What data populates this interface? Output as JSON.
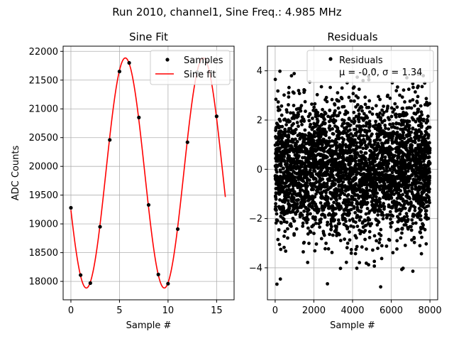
{
  "figure": {
    "title": "Run 2010, channel1, Sine Freq.: 4.985 MHz"
  },
  "colors": {
    "samples": "#000000",
    "fit": "#ff0000",
    "grid": "#b0b0b0",
    "residuals": "#000000"
  },
  "chart_data": [
    {
      "type": "line",
      "title": "Sine Fit",
      "xlabel": "Sample #",
      "ylabel": "ADC Counts",
      "xlim": [
        -0.8,
        16.8
      ],
      "ylim": [
        17680,
        22090
      ],
      "xticks": [
        0,
        5,
        10,
        15
      ],
      "yticks": [
        18000,
        18500,
        19000,
        19500,
        20000,
        20500,
        21000,
        21500,
        22000
      ],
      "grid": true,
      "legend_position": "top-right",
      "series": [
        {
          "name": "Samples",
          "style": "markers",
          "x": [
            0,
            1,
            2,
            3,
            4,
            5,
            6,
            7,
            8,
            9,
            10,
            11,
            12,
            13,
            14,
            15
          ],
          "y": [
            19280,
            18110,
            17970,
            18950,
            20460,
            21650,
            21800,
            20850,
            19330,
            18120,
            17960,
            18910,
            20420,
            21640,
            21820,
            20870
          ]
        },
        {
          "name": "Sine fit",
          "style": "line",
          "model": {
            "offset": 19885,
            "amplitude": 2000,
            "period_samples": 8.025,
            "peak_at_sample": 5.6,
            "x_range": [
              0,
              15.9
            ]
          }
        }
      ]
    },
    {
      "type": "scatter",
      "title": "Residuals",
      "xlabel": "Sample #",
      "ylabel": "",
      "xlim": [
        -400,
        8400
      ],
      "ylim": [
        -5.3,
        5.0
      ],
      "xticks": [
        0,
        2000,
        4000,
        6000,
        8000
      ],
      "yticks": [
        -4,
        -2,
        0,
        2,
        4
      ],
      "grid": true,
      "legend_position": "top-right",
      "series": [
        {
          "name": "Residuals",
          "n_points": 8000,
          "x_range": [
            0,
            8000
          ],
          "mean": -0.0,
          "std": 1.34
        }
      ],
      "legend": {
        "label": "Residuals",
        "stats_label": "μ = -0.0, σ = 1.34"
      }
    }
  ]
}
